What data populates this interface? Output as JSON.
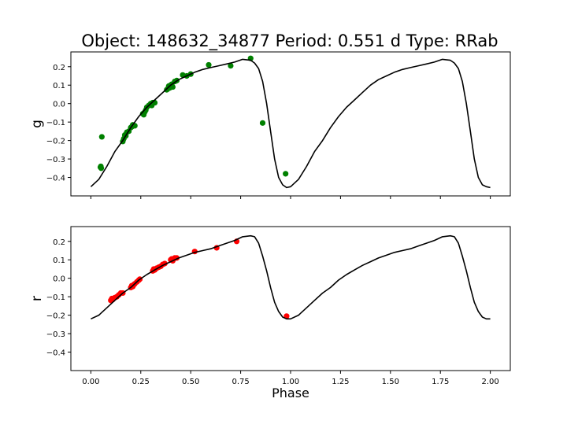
{
  "title": "Object: 148632_34877    Period: 0.551 d    Type: RRab",
  "colors": {
    "g_points": "#008000",
    "r_points": "#ff0000",
    "model_line": "#000000",
    "axes": "#000000"
  },
  "chart_data": [
    {
      "type": "scatter",
      "panel": "top",
      "ylabel": "g",
      "xlabel": "",
      "xlim": [
        -0.1,
        2.1
      ],
      "ylim": [
        -0.5,
        0.28
      ],
      "xticks": [
        0.0,
        0.25,
        0.5,
        0.75,
        1.0,
        1.25,
        1.5,
        1.75,
        2.0
      ],
      "xtick_labels_shown": false,
      "yticks": [
        -0.4,
        -0.3,
        -0.2,
        -0.1,
        0.0,
        0.1,
        0.2
      ],
      "ytick_labels": [
        "−0.4",
        "−0.3",
        "−0.2",
        "−0.1",
        "0.0",
        "0.1",
        "0.2"
      ],
      "grid": false,
      "series": [
        {
          "kind": "points",
          "color": "#008000",
          "x": [
            0.048,
            0.05,
            0.052,
            0.055,
            0.16,
            0.165,
            0.17,
            0.175,
            0.18,
            0.19,
            0.2,
            0.205,
            0.21,
            0.22,
            0.26,
            0.265,
            0.27,
            0.275,
            0.28,
            0.29,
            0.3,
            0.305,
            0.31,
            0.32,
            0.38,
            0.385,
            0.39,
            0.395,
            0.4,
            0.405,
            0.41,
            0.42,
            0.43,
            0.46,
            0.48,
            0.5,
            0.59,
            0.7,
            0.8,
            0.86,
            0.975
          ],
          "y": [
            -0.345,
            -0.34,
            -0.35,
            -0.18,
            -0.205,
            -0.19,
            -0.17,
            -0.175,
            -0.155,
            -0.15,
            -0.13,
            -0.125,
            -0.115,
            -0.12,
            -0.055,
            -0.06,
            -0.045,
            -0.035,
            -0.02,
            -0.01,
            0.0,
            -0.01,
            0.005,
            0.005,
            0.075,
            0.08,
            0.095,
            0.085,
            0.1,
            0.105,
            0.09,
            0.12,
            0.125,
            0.155,
            0.15,
            0.16,
            0.21,
            0.205,
            0.245,
            -0.105,
            -0.38
          ]
        },
        {
          "kind": "line",
          "color": "#000000",
          "x": [
            0.0,
            0.04,
            0.08,
            0.12,
            0.16,
            0.2,
            0.24,
            0.28,
            0.32,
            0.36,
            0.4,
            0.44,
            0.48,
            0.52,
            0.56,
            0.6,
            0.64,
            0.68,
            0.72,
            0.76,
            0.8,
            0.82,
            0.84,
            0.86,
            0.88,
            0.9,
            0.92,
            0.94,
            0.96,
            0.98,
            1.0,
            1.04,
            1.08,
            1.12,
            1.16,
            1.2,
            1.24,
            1.28,
            1.32,
            1.36,
            1.4,
            1.44,
            1.48,
            1.52,
            1.56,
            1.6,
            1.64,
            1.68,
            1.72,
            1.76,
            1.8,
            1.82,
            1.84,
            1.86,
            1.88,
            1.9,
            1.92,
            1.94,
            1.96,
            1.98,
            2.0
          ],
          "y": [
            -0.45,
            -0.41,
            -0.34,
            -0.26,
            -0.2,
            -0.13,
            -0.07,
            -0.02,
            0.02,
            0.06,
            0.1,
            0.13,
            0.15,
            0.17,
            0.185,
            0.195,
            0.205,
            0.215,
            0.225,
            0.24,
            0.235,
            0.22,
            0.19,
            0.12,
            0.0,
            -0.15,
            -0.3,
            -0.4,
            -0.44,
            -0.455,
            -0.45,
            -0.41,
            -0.34,
            -0.26,
            -0.2,
            -0.13,
            -0.07,
            -0.02,
            0.02,
            0.06,
            0.1,
            0.13,
            0.15,
            0.17,
            0.185,
            0.195,
            0.205,
            0.215,
            0.225,
            0.24,
            0.235,
            0.22,
            0.19,
            0.12,
            0.0,
            -0.15,
            -0.3,
            -0.4,
            -0.44,
            -0.45,
            -0.455
          ]
        }
      ]
    },
    {
      "type": "scatter",
      "panel": "bottom",
      "ylabel": "r",
      "xlabel": "Phase",
      "xlim": [
        -0.1,
        2.1
      ],
      "ylim": [
        -0.5,
        0.28
      ],
      "xticks": [
        0.0,
        0.25,
        0.5,
        0.75,
        1.0,
        1.25,
        1.5,
        1.75,
        2.0
      ],
      "xtick_labels": [
        "0.00",
        "0.25",
        "0.50",
        "0.75",
        "1.00",
        "1.25",
        "1.50",
        "1.75",
        "2.00"
      ],
      "yticks": [
        -0.4,
        -0.3,
        -0.2,
        -0.1,
        0.0,
        0.1,
        0.2
      ],
      "ytick_labels": [
        "−0.4",
        "−0.3",
        "−0.2",
        "−0.1",
        "0.0",
        "0.1",
        "0.2"
      ],
      "grid": false,
      "series": [
        {
          "kind": "points",
          "color": "#ff0000",
          "x": [
            0.1,
            0.105,
            0.11,
            0.12,
            0.13,
            0.14,
            0.15,
            0.16,
            0.2,
            0.205,
            0.21,
            0.215,
            0.22,
            0.23,
            0.24,
            0.245,
            0.31,
            0.315,
            0.32,
            0.33,
            0.34,
            0.35,
            0.36,
            0.37,
            0.4,
            0.405,
            0.41,
            0.42,
            0.43,
            0.52,
            0.63,
            0.73,
            0.98
          ],
          "y": [
            -0.12,
            -0.11,
            -0.115,
            -0.105,
            -0.1,
            -0.09,
            -0.08,
            -0.08,
            -0.05,
            -0.04,
            -0.045,
            -0.035,
            -0.03,
            -0.02,
            -0.01,
            -0.005,
            0.04,
            0.05,
            0.045,
            0.055,
            0.06,
            0.065,
            0.075,
            0.08,
            0.1,
            0.105,
            0.095,
            0.11,
            0.11,
            0.145,
            0.165,
            0.2,
            -0.205
          ]
        },
        {
          "kind": "line",
          "color": "#000000",
          "x": [
            0.0,
            0.04,
            0.08,
            0.12,
            0.16,
            0.2,
            0.24,
            0.28,
            0.32,
            0.36,
            0.4,
            0.44,
            0.48,
            0.52,
            0.56,
            0.6,
            0.64,
            0.68,
            0.72,
            0.76,
            0.8,
            0.82,
            0.84,
            0.86,
            0.88,
            0.9,
            0.92,
            0.94,
            0.96,
            0.98,
            1.0,
            1.04,
            1.08,
            1.12,
            1.16,
            1.2,
            1.24,
            1.28,
            1.32,
            1.36,
            1.4,
            1.44,
            1.48,
            1.52,
            1.56,
            1.6,
            1.64,
            1.68,
            1.72,
            1.76,
            1.8,
            1.82,
            1.84,
            1.86,
            1.88,
            1.9,
            1.92,
            1.94,
            1.96,
            1.98,
            2.0
          ],
          "y": [
            -0.22,
            -0.2,
            -0.16,
            -0.12,
            -0.08,
            -0.05,
            -0.01,
            0.02,
            0.045,
            0.07,
            0.09,
            0.11,
            0.125,
            0.14,
            0.15,
            0.16,
            0.175,
            0.19,
            0.205,
            0.225,
            0.23,
            0.225,
            0.19,
            0.12,
            0.04,
            -0.05,
            -0.13,
            -0.18,
            -0.21,
            -0.22,
            -0.22,
            -0.2,
            -0.16,
            -0.12,
            -0.08,
            -0.05,
            -0.01,
            0.02,
            0.045,
            0.07,
            0.09,
            0.11,
            0.125,
            0.14,
            0.15,
            0.16,
            0.175,
            0.19,
            0.205,
            0.225,
            0.23,
            0.225,
            0.19,
            0.12,
            0.04,
            -0.05,
            -0.13,
            -0.18,
            -0.21,
            -0.22,
            -0.22
          ]
        }
      ]
    }
  ]
}
